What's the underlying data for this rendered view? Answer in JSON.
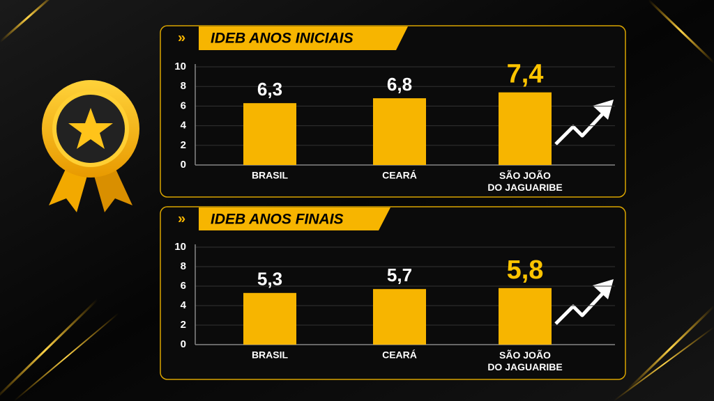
{
  "chart_data": [
    {
      "type": "bar",
      "title": "IDEB ANOS INICIAIS",
      "categories": [
        "BRASIL",
        "CEARÁ",
        "SÃO JOÃO\nDO JAGUARIBE"
      ],
      "values": [
        6.3,
        6.8,
        7.4
      ],
      "value_labels": [
        "6,3",
        "6,8",
        "7,4"
      ],
      "color": "#f7b500",
      "highlight_index": 2,
      "highlight_color": "#ffc400",
      "ylim": [
        0,
        10
      ],
      "yticks": [
        0,
        2,
        4,
        6,
        8,
        10
      ],
      "grid": true
    },
    {
      "type": "bar",
      "title": "IDEB ANOS FINAIS",
      "categories": [
        "BRASIL",
        "CEARÁ",
        "SÃO JOÃO\nDO JAGUARIBE"
      ],
      "values": [
        5.3,
        5.7,
        5.8
      ],
      "value_labels": [
        "5,3",
        "5,7",
        "5,8"
      ],
      "color": "#f7b500",
      "highlight_index": 2,
      "highlight_color": "#ffc400",
      "ylim": [
        0,
        10
      ],
      "yticks": [
        0,
        2,
        4,
        6,
        8,
        10
      ],
      "grid": true
    }
  ]
}
